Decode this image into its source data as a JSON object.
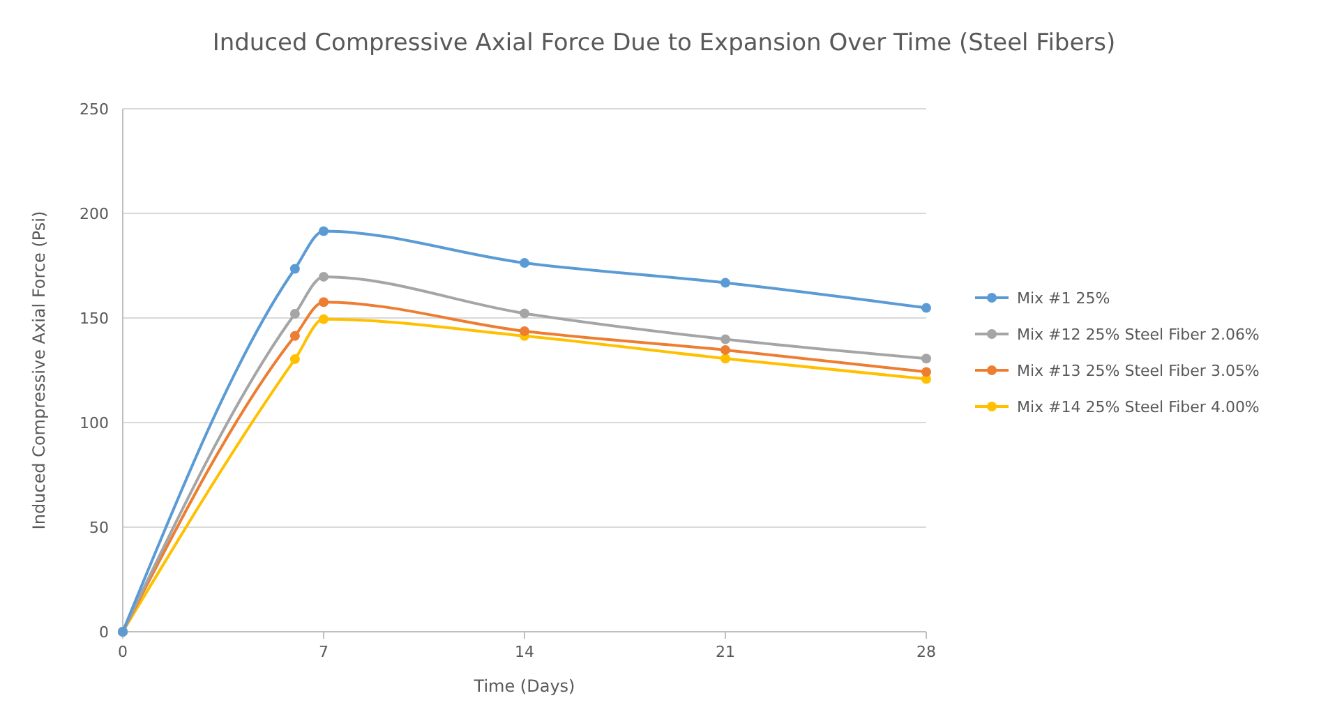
{
  "chart_data": {
    "type": "line",
    "title": "Induced Compressive Axial Force Due to Expansion Over Time (Steel Fibers)",
    "xlabel": "Time (Days)",
    "ylabel": "Induced Compressive Axial Force  (Psi)",
    "x": [
      0,
      6,
      7,
      14,
      21,
      28
    ],
    "xlim": [
      0,
      28
    ],
    "xticks": [
      0,
      7,
      14,
      21,
      28
    ],
    "ylim": [
      0,
      250
    ],
    "yticks": [
      0,
      50,
      100,
      150,
      200,
      250
    ],
    "grid": "y",
    "legend": "right",
    "marker": "circle",
    "line_style": "solid",
    "series": [
      {
        "name": "Mix #1 25%",
        "color": "#5b9bd5",
        "values": [
          0,
          173.5,
          191.5,
          176.3,
          166.8,
          154.8
        ]
      },
      {
        "name": "Mix #12 25% Steel Fiber 2.06%",
        "color": "#a5a5a5",
        "values": [
          0,
          152,
          169.7,
          152.2,
          139.8,
          130.6
        ]
      },
      {
        "name": "Mix #13 25% Steel Fiber 3.05%",
        "color": "#ed7d31",
        "values": [
          0,
          141.4,
          157.6,
          143.7,
          134.7,
          124.2
        ]
      },
      {
        "name": "Mix #14 25% Steel Fiber 4.00%",
        "color": "#ffc000",
        "values": [
          0,
          130.3,
          149.4,
          141.4,
          130.6,
          120.8
        ]
      }
    ]
  }
}
